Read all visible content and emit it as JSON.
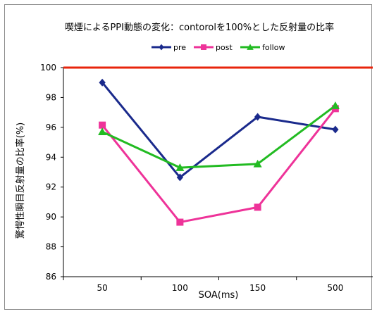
{
  "chart_data": {
    "type": "line",
    "title": "喫煙によるPPI動態の変化：contorolを100%とした反射量の比率",
    "xlabel": "SOA(ms)",
    "ylabel": "驚愕性瞬目反射量の比率(%)",
    "categories": [
      "50",
      "100",
      "150",
      "500"
    ],
    "ylim": [
      86,
      100
    ],
    "yticks": [
      "86",
      "88",
      "90",
      "92",
      "94",
      "96",
      "98",
      "100"
    ],
    "reference_line": {
      "value": 100,
      "color": "#e8240c"
    },
    "legend_position": "top-center",
    "grid": false,
    "series": [
      {
        "name": "pre",
        "color": "#1a2a8c",
        "marker": "diamond",
        "values": [
          99.0,
          92.65,
          96.7,
          95.85
        ]
      },
      {
        "name": "post",
        "color": "#ee3399",
        "marker": "square",
        "values": [
          96.15,
          89.65,
          90.65,
          97.25
        ]
      },
      {
        "name": "follow",
        "color": "#22bb22",
        "marker": "triangle",
        "values": [
          95.7,
          93.3,
          93.55,
          97.45
        ]
      }
    ]
  }
}
